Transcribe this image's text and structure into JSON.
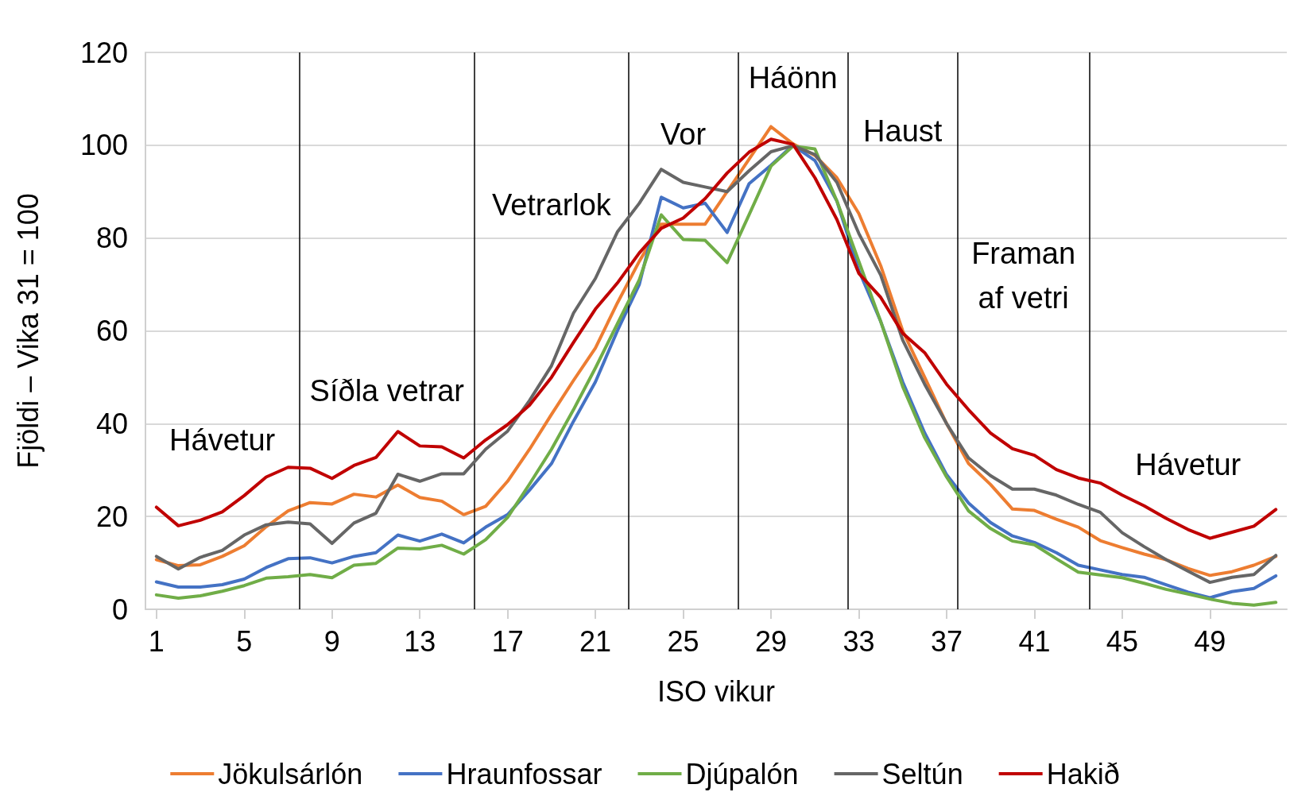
{
  "chart_data": {
    "type": "line",
    "xlabel": "ISO vikur",
    "ylabel": "Fjöldi – Vika 31 = 100",
    "x": [
      1,
      2,
      3,
      4,
      5,
      6,
      7,
      8,
      9,
      10,
      11,
      12,
      13,
      14,
      15,
      16,
      17,
      18,
      19,
      20,
      21,
      22,
      23,
      24,
      25,
      26,
      27,
      28,
      29,
      30,
      31,
      32,
      33,
      34,
      35,
      36,
      37,
      38,
      39,
      40,
      41,
      42,
      43,
      44,
      45,
      46,
      47,
      48,
      49,
      50,
      51,
      52
    ],
    "xlim": [
      0.5,
      52.5
    ],
    "xticks": [
      1,
      5,
      9,
      13,
      17,
      21,
      25,
      29,
      33,
      37,
      41,
      45,
      49
    ],
    "ylim": [
      0,
      120
    ],
    "yticks": [
      0,
      20,
      40,
      60,
      80,
      100,
      120
    ],
    "grid": "y",
    "legend": "bottom",
    "marker": "none",
    "line_style": "solid",
    "series": [
      {
        "name": "Jökulsárlón",
        "color": "#ed7d31",
        "values": [
          10.7,
          9.4,
          9.6,
          11.4,
          13.7,
          17.8,
          21.2,
          23,
          22.7,
          24.8,
          24.2,
          26.8,
          24.1,
          23.3,
          20.4,
          22.2,
          27.6,
          34.5,
          42,
          49.3,
          56.3,
          66,
          75,
          83,
          83,
          83,
          90,
          97,
          104,
          100.3,
          97.8,
          93,
          85.3,
          74,
          60,
          50,
          40,
          31.4,
          26.9,
          21.6,
          21.3,
          19.4,
          17.7,
          14.8,
          13.3,
          11.9,
          10.7,
          8.8,
          7.3,
          8.1,
          9.5,
          11.4
        ]
      },
      {
        "name": "Hraunfossar",
        "color": "#4472c4",
        "values": [
          5.9,
          4.8,
          4.8,
          5.3,
          6.5,
          9,
          10.9,
          11.1,
          10,
          11.4,
          12.2,
          16,
          14.7,
          16.2,
          14.3,
          17.7,
          20.4,
          25.7,
          31.4,
          40.5,
          49,
          60,
          70,
          88.8,
          86.5,
          87.5,
          81.2,
          91.7,
          95.7,
          100,
          96.7,
          88,
          73,
          62,
          49,
          38,
          29,
          22.9,
          18.7,
          15.8,
          14.4,
          12.2,
          9.5,
          8.5,
          7.5,
          6.9,
          5.3,
          3.7,
          2.5,
          3.8,
          4.5,
          7.2
        ]
      },
      {
        "name": "Djúpalón",
        "color": "#70ad47",
        "values": [
          3.1,
          2.4,
          2.9,
          3.9,
          5.1,
          6.7,
          7,
          7.5,
          6.8,
          9.5,
          9.9,
          13.2,
          13,
          13.8,
          11.9,
          15,
          19.8,
          27,
          34.5,
          43,
          52,
          61.5,
          71,
          85,
          79.7,
          79.5,
          74.7,
          85,
          95.5,
          99.8,
          99.2,
          88,
          75,
          62,
          48,
          37,
          28.5,
          21.2,
          17.4,
          14.7,
          13.9,
          10.9,
          8,
          7.4,
          6.8,
          5.6,
          4.3,
          3.3,
          2.2,
          1.3,
          0.9,
          1.5
        ]
      },
      {
        "name": "Seltún",
        "color": "#666666",
        "values": [
          11.4,
          8.7,
          11.2,
          12.7,
          16,
          18.2,
          18.8,
          18.4,
          14.2,
          18.6,
          20.7,
          29.1,
          27.6,
          29.2,
          29.2,
          34.5,
          38.4,
          45,
          52.5,
          63.8,
          71.3,
          81.3,
          87.5,
          94.8,
          92,
          91,
          90,
          94.5,
          98.6,
          99.9,
          98,
          92,
          81,
          72,
          58,
          48.5,
          40,
          32.6,
          28.8,
          25.9,
          25.9,
          24.6,
          22.6,
          20.9,
          16.5,
          13.5,
          10.7,
          8.2,
          5.8,
          6.9,
          7.5,
          11.6
        ]
      },
      {
        "name": "Hakið",
        "color": "#c00000",
        "values": [
          22,
          18,
          19.2,
          21,
          24.5,
          28.5,
          30.6,
          30.4,
          28.2,
          31,
          32.7,
          38.3,
          35.2,
          35,
          32.6,
          36.5,
          39.8,
          44,
          50,
          57.5,
          64.7,
          70.3,
          76.8,
          82.1,
          84.3,
          88.5,
          94,
          98.5,
          101.3,
          100.2,
          93,
          84,
          72.4,
          67.2,
          59.5,
          55.3,
          48.5,
          43,
          38,
          34.6,
          33.2,
          30.1,
          28.3,
          27.2,
          24.6,
          22.3,
          19.6,
          17.2,
          15.3,
          16.6,
          17.9,
          21.5
        ]
      }
    ],
    "ref_lines": [
      {
        "axis": "x",
        "value": 7.5,
        "color": "#000000"
      },
      {
        "axis": "x",
        "value": 15.5,
        "color": "#000000"
      },
      {
        "axis": "x",
        "value": 22.5,
        "color": "#000000"
      },
      {
        "axis": "x",
        "value": 27.5,
        "color": "#000000"
      },
      {
        "axis": "x",
        "value": 32.5,
        "color": "#000000"
      },
      {
        "axis": "x",
        "value": 37.5,
        "color": "#000000"
      },
      {
        "axis": "x",
        "value": 43.5,
        "color": "#000000"
      }
    ],
    "annotations": [
      "Hávetur",
      "Síðla vetrar",
      "Vetrarlok",
      "Vor",
      "Háönn",
      "Haust",
      "Framan\naf vetri",
      "Hávetur"
    ]
  }
}
